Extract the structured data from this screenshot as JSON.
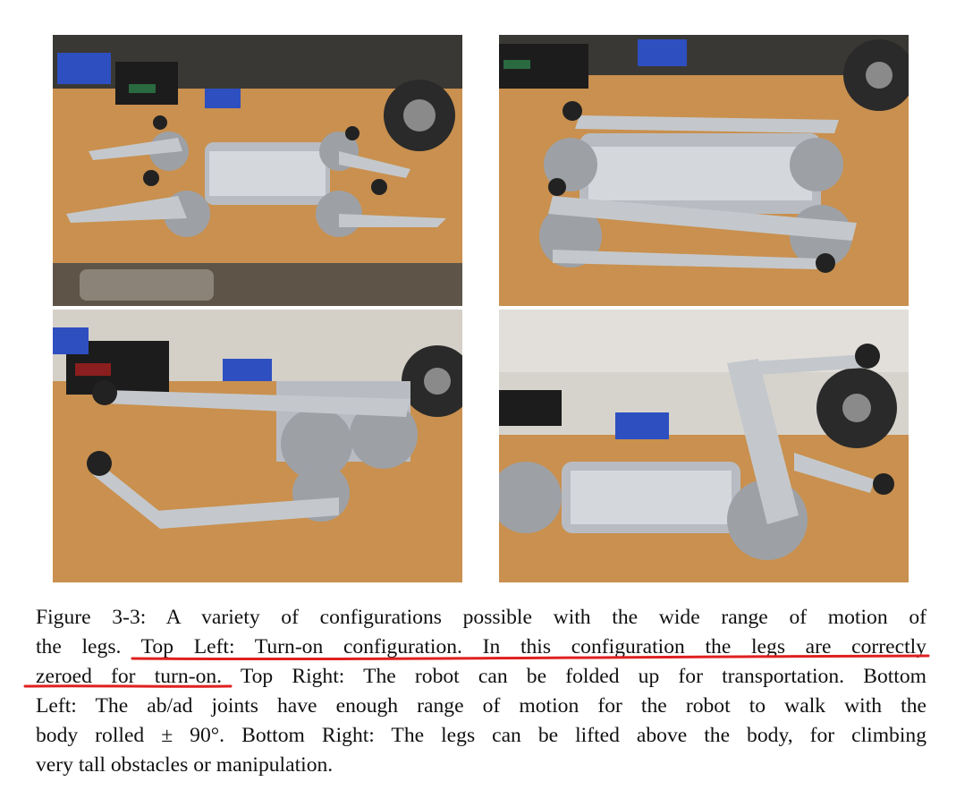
{
  "figure": {
    "photos": [
      {
        "id": "top-left",
        "description_icon": "robot-photo-turn-on-config"
      },
      {
        "id": "top-right",
        "description_icon": "robot-photo-folded"
      },
      {
        "id": "bottom-left",
        "description_icon": "robot-photo-rolled"
      },
      {
        "id": "bottom-right",
        "description_icon": "robot-photo-legs-lifted"
      }
    ],
    "caption": {
      "line1": "Figure 3-3: A variety of configurations possible with the wide range of motion of",
      "line2_pre": "the legs. ",
      "line2_hl": "Top Left: Turn-on configuration. In this configuration the legs are correctly",
      "line3_hl": "zeroed for turn-on.",
      "line3_post": " Top Right: The robot can be folded up for transportation. Bottom",
      "line4": "Left: The ab/ad joints have enough range of motion for the robot to walk with the",
      "line5": "body rolled ± 90°. Bottom Right: The legs can be lifted above the body, for climbing",
      "line6": "very tall obstacles or manipulation."
    },
    "annotation_color": "#e02020"
  }
}
